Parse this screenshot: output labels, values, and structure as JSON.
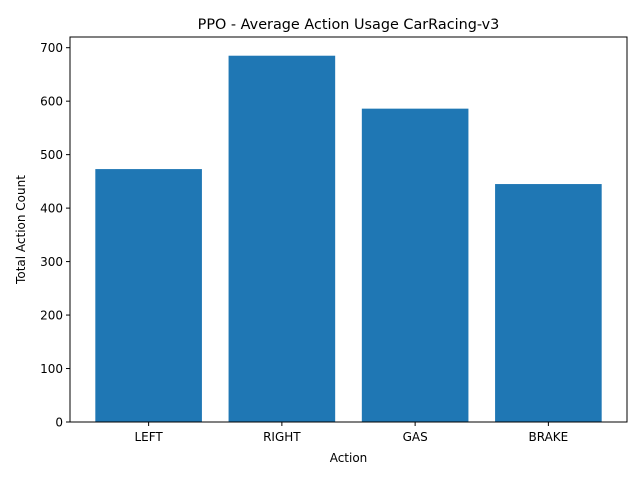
{
  "chart_data": {
    "type": "bar",
    "title": "PPO - Average Action Usage CarRacing-v3",
    "xlabel": "Action",
    "ylabel": "Total Action Count",
    "categories": [
      "LEFT",
      "RIGHT",
      "GAS",
      "BRAKE"
    ],
    "values": [
      473,
      685,
      586,
      445
    ],
    "ylim": [
      0,
      720
    ],
    "yticks": [
      0,
      100,
      200,
      300,
      400,
      500,
      600,
      700
    ],
    "grid": false,
    "legend": "none",
    "bar_color": "#1f77b4"
  }
}
